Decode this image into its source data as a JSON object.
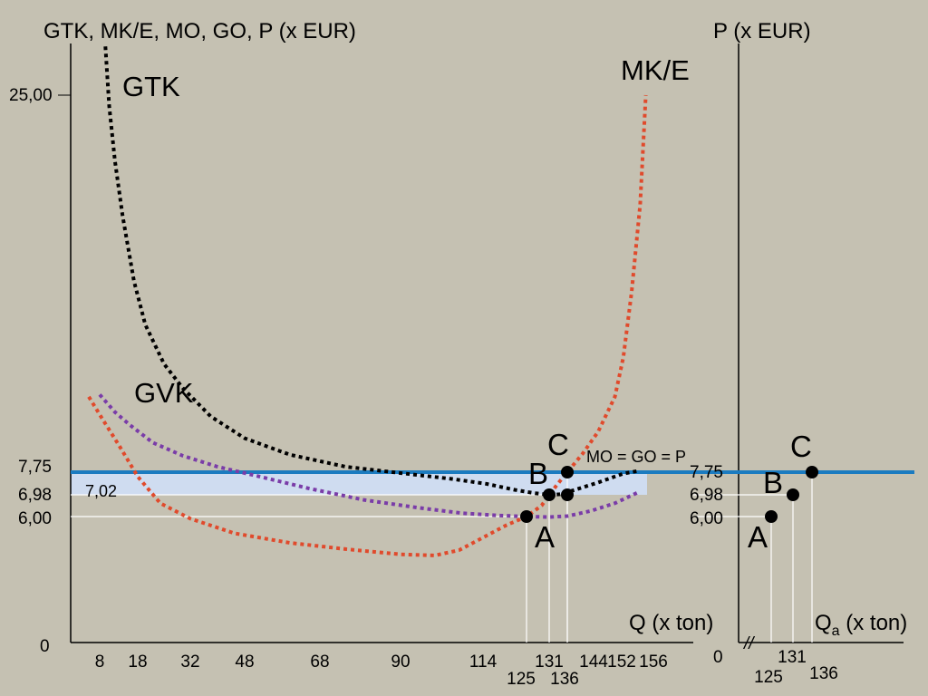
{
  "colors": {
    "background": "#c5c1b2",
    "gtk": "#000000",
    "mke": "#e04a2c",
    "gvk": "#7a3ca8",
    "price_line": "#1b7bc0",
    "shade": "#cfdcf0",
    "guide": "#ffffff"
  },
  "chart_data": [
    {
      "type": "line",
      "title": "",
      "ylabel": "GTK, MK/E, MO, GO, P (x EUR)",
      "xlabel": "Q (x ton)",
      "x_ticks": [
        "8",
        "18",
        "32",
        "48",
        "68",
        "90",
        "114",
        "131",
        "144",
        "152",
        "156"
      ],
      "x_ticks_low": [
        "125",
        "136"
      ],
      "y_ticks": [
        "0",
        "6,00",
        "6,98",
        "7,75",
        "25,00"
      ],
      "shaded_band_label": "7,02",
      "series": [
        {
          "name": "GTK",
          "color": "#000000",
          "points": [
            [
              9.5,
              27.3
            ],
            [
              10.5,
              24.5
            ],
            [
              12,
              22.0
            ],
            [
              14,
              19.5
            ],
            [
              17,
              16.5
            ],
            [
              20,
              14.5
            ],
            [
              25,
              12.7
            ],
            [
              30,
              11.6
            ],
            [
              38,
              10.3
            ],
            [
              48,
              9.3
            ],
            [
              60,
              8.55
            ],
            [
              75,
              8.0
            ],
            [
              90,
              7.72
            ],
            [
              105,
              7.52
            ],
            [
              115,
              7.35
            ],
            [
              122,
              7.15
            ],
            [
              127,
              7.04
            ],
            [
              131,
              6.98
            ],
            [
              134,
              7.0
            ],
            [
              138,
              7.15
            ],
            [
              144,
              7.4
            ],
            [
              150,
              7.7
            ],
            [
              153,
              7.8
            ]
          ]
        },
        {
          "name": "MK/E",
          "color": "#e04a2c",
          "points": [
            [
              5,
              11.2
            ],
            [
              9,
              10.1
            ],
            [
              13,
              9.0
            ],
            [
              18,
              7.6
            ],
            [
              24,
              6.6
            ],
            [
              32,
              5.9
            ],
            [
              45,
              5.2
            ],
            [
              60,
              4.75
            ],
            [
              75,
              4.45
            ],
            [
              90,
              4.2
            ],
            [
              100,
              4.15
            ],
            [
              107,
              4.4
            ],
            [
              114,
              5.0
            ],
            [
              120,
              5.6
            ],
            [
              125,
              6.0
            ],
            [
              129,
              6.5
            ],
            [
              131,
              6.98
            ],
            [
              134,
              7.45
            ],
            [
              136,
              7.75
            ],
            [
              140,
              8.6
            ],
            [
              144,
              9.6
            ],
            [
              148,
              11.2
            ],
            [
              150,
              13.0
            ],
            [
              152,
              16.0
            ],
            [
              153.5,
              20.0
            ],
            [
              154.5,
              25.0
            ]
          ]
        },
        {
          "name": "GVK",
          "color": "#7a3ca8",
          "points": [
            [
              8,
              11.3
            ],
            [
              12,
              10.5
            ],
            [
              16,
              9.9
            ],
            [
              22,
              9.1
            ],
            [
              30,
              8.5
            ],
            [
              40,
              8.0
            ],
            [
              52,
              7.6
            ],
            [
              65,
              7.2
            ],
            [
              80,
              6.75
            ],
            [
              95,
              6.4
            ],
            [
              108,
              6.15
            ],
            [
              118,
              6.05
            ],
            [
              125,
              6.0
            ],
            [
              131,
              5.98
            ],
            [
              136,
              6.02
            ],
            [
              142,
              6.25
            ],
            [
              148,
              6.6
            ],
            [
              153,
              7.05
            ]
          ]
        }
      ],
      "points": [
        {
          "label": "A",
          "x": 125,
          "y": 6.0
        },
        {
          "label": "B",
          "x": 131,
          "y": 6.98
        },
        {
          "label": "C",
          "x": 136,
          "y": 7.75
        }
      ],
      "extra_markers": [
        {
          "x": 136,
          "y": 6.98
        }
      ],
      "price_line": {
        "y": 7.75,
        "label": "MO = GO = P"
      }
    },
    {
      "type": "line",
      "title": "",
      "ylabel": "P (x EUR)",
      "xlabel": "Qa (x ton)",
      "x_ticks": [
        "0",
        "131"
      ],
      "x_ticks_low": [
        "125",
        "136"
      ],
      "y_ticks": [
        "6,00",
        "6,98",
        "7,75"
      ],
      "axis_break": true,
      "points": [
        {
          "label": "A",
          "x": 125,
          "y": 6.0
        },
        {
          "label": "B",
          "x": 131,
          "y": 6.98
        },
        {
          "label": "C",
          "x": 136,
          "y": 7.75
        }
      ],
      "price_line": {
        "y": 7.75
      }
    }
  ],
  "labels": {
    "left_title": "GTK, MK/E, MO, GO, P (x EUR)",
    "right_title": "P (x EUR)",
    "left_xlabel": "Q (x ton)",
    "right_xlabel_main": "Q",
    "right_xlabel_sub": "a",
    "right_xlabel_rest": " (x ton)",
    "gtk": "GTK",
    "mke": "MK/E",
    "gvk": "GVK",
    "price_line": "MO = GO = P",
    "band_value": "7,02",
    "y25": "25,00",
    "y775": "7,75",
    "y698": "6,98",
    "y600": "6,00",
    "y0": "0",
    "right_zero": "0",
    "break_mark": "//",
    "pt_a": "A",
    "pt_b": "B",
    "pt_c": "C"
  }
}
